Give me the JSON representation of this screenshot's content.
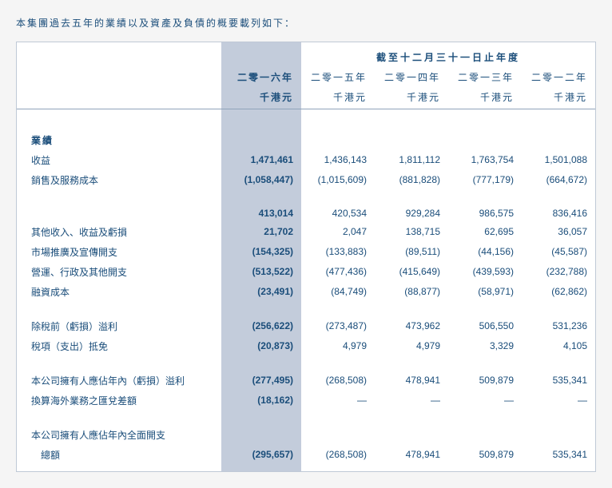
{
  "intro": "本集團過去五年的業績以及資產及負債的概要載列如下：",
  "header": {
    "super": "截至十二月三十一日止年度",
    "years": [
      "二零一六年",
      "二零一五年",
      "二零一四年",
      "二零一三年",
      "二零一二年"
    ],
    "unit": "千港元"
  },
  "sections": {
    "results_title": "業績",
    "rows1": [
      {
        "label": "收益",
        "v": [
          "1,471,461",
          "1,436,143",
          "1,811,112",
          "1,763,754",
          "1,501,088"
        ]
      },
      {
        "label": "銷售及服務成本",
        "v": [
          "(1,058,447)",
          "(1,015,609)",
          "(881,828)",
          "(777,179)",
          "(664,672)"
        ]
      }
    ],
    "rows2": [
      {
        "label": "",
        "v": [
          "413,014",
          "420,534",
          "929,284",
          "986,575",
          "836,416"
        ]
      },
      {
        "label": "其他收入、收益及虧損",
        "v": [
          "21,702",
          "2,047",
          "138,715",
          "62,695",
          "36,057"
        ]
      },
      {
        "label": "市場推廣及宣傳開支",
        "v": [
          "(154,325)",
          "(133,883)",
          "(89,511)",
          "(44,156)",
          "(45,587)"
        ]
      },
      {
        "label": "營運、行政及其他開支",
        "v": [
          "(513,522)",
          "(477,436)",
          "(415,649)",
          "(439,593)",
          "(232,788)"
        ]
      },
      {
        "label": "融資成本",
        "v": [
          "(23,491)",
          "(84,749)",
          "(88,877)",
          "(58,971)",
          "(62,862)"
        ]
      }
    ],
    "rows3": [
      {
        "label": "除稅前（虧損）溢利",
        "v": [
          "(256,622)",
          "(273,487)",
          "473,962",
          "506,550",
          "531,236"
        ]
      },
      {
        "label": "稅項（支出）抵免",
        "v": [
          "(20,873)",
          "4,979",
          "4,979",
          "3,329",
          "4,105"
        ]
      }
    ],
    "rows4": [
      {
        "label": "本公司擁有人應佔年內（虧損）溢利",
        "v": [
          "(277,495)",
          "(268,508)",
          "478,941",
          "509,879",
          "535,341"
        ]
      },
      {
        "label": "換算海外業務之匯兌差額",
        "v": [
          "(18,162)",
          "—",
          "—",
          "—",
          "—"
        ]
      }
    ],
    "rows5": [
      {
        "label": "本公司擁有人應佔年內全面開支",
        "two_line": true
      },
      {
        "label": "總額",
        "indent": true,
        "v": [
          "(295,657)",
          "(268,508)",
          "478,941",
          "509,879",
          "535,341"
        ]
      }
    ]
  },
  "colors": {
    "text": "#1a4d7a",
    "highlight_bg": "#c3ccdb",
    "border": "#8fa3bb",
    "page_bg": "#f5f5f5"
  }
}
